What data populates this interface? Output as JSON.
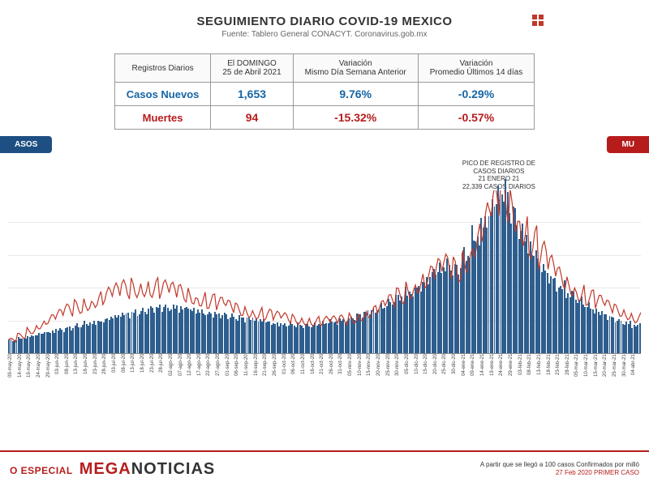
{
  "header": {
    "title": "SEGUIMIENTO DIARIO COVID-19 MEXICO",
    "subtitle": "Fuente: Tablero General CONACYT. Coronavirus.gob.mx"
  },
  "table": {
    "col_headers": [
      "Registros Diarios",
      "El DOMINGO\n25 de Abril 2021",
      "Variación\nMismo Día Semana Anterior",
      "Variación\nPromedio Últimos 14 días"
    ],
    "rows": [
      {
        "label": "Casos Nuevos",
        "values": [
          "1,653",
          "9.76%",
          "-0.29%"
        ],
        "class": "casos"
      },
      {
        "label": "Muertes",
        "values": [
          "94",
          "-15.32%",
          "-0.57%"
        ],
        "class": "muertes"
      }
    ]
  },
  "tabs": {
    "left": "ASOS",
    "right": "MU"
  },
  "annotation": {
    "lines": [
      "PICO DE REGISTRO DE",
      "CASOS DIARIOS",
      "21 ENERO 21",
      "22,339 CASOS DIARIOS"
    ]
  },
  "chart": {
    "type": "bar+line",
    "background_color": "#ffffff",
    "grid_color": "#e8e8e8",
    "bar_color": "#2e5e8e",
    "line_color": "#c0392b",
    "line_width": 1.2,
    "ymax_bars": 22500,
    "ymax_line": 1800,
    "grid_steps": 5,
    "xlabels": [
      "09-may-20",
      "14-may-20",
      "19-may-20",
      "24-may-20",
      "29-may-20",
      "03-jun-20",
      "08-jun-20",
      "13-jun-20",
      "18-jun-20",
      "23-jun-20",
      "28-jun-20",
      "03-jul-20",
      "08-jul-20",
      "13-jul-20",
      "18-jul-20",
      "23-jul-20",
      "28-jul-20",
      "02-ago-20",
      "07-ago-20",
      "12-ago-20",
      "17-ago-20",
      "22-ago-20",
      "27-ago-20",
      "01-sep-20",
      "06-sep-20",
      "11-sep-20",
      "16-sep-20",
      "21-sep-20",
      "26-sep-20",
      "01-oct-20",
      "06-oct-20",
      "11-oct-20",
      "16-oct-20",
      "21-oct-20",
      "26-oct-20",
      "31-oct-20",
      "05-nov-20",
      "10-nov-20",
      "15-nov-20",
      "20-nov-20",
      "25-nov-20",
      "30-nov-20",
      "05-dic-20",
      "10-dic-20",
      "15-dic-20",
      "20-dic-20",
      "25-dic-20",
      "30-dic-20",
      "04-ene-21",
      "09-ene-21",
      "14-ene-21",
      "19-ene-21",
      "24-ene-21",
      "29-ene-21",
      "03-feb-21",
      "08-feb-21",
      "13-feb-21",
      "18-feb-21",
      "23-feb-21",
      "28-feb-21",
      "05-mar-21",
      "10-mar-21",
      "15-mar-21",
      "20-mar-21",
      "25-mar-21",
      "30-mar-21",
      "04-abr-21"
    ],
    "bars": [
      1800,
      2100,
      2400,
      2700,
      2900,
      3200,
      3500,
      3800,
      4100,
      4400,
      4700,
      5000,
      5300,
      5600,
      5900,
      6200,
      6400,
      6300,
      6100,
      5900,
      5700,
      5500,
      5300,
      5100,
      4900,
      4700,
      4500,
      4300,
      4100,
      4000,
      3900,
      3800,
      3900,
      4100,
      4300,
      4600,
      5000,
      5400,
      5800,
      6300,
      6900,
      7600,
      8400,
      9300,
      10300,
      11400,
      12000,
      11500,
      13500,
      16000,
      18500,
      21000,
      22000,
      19000,
      16500,
      14000,
      12000,
      10500,
      9200,
      8100,
      7200,
      6400,
      5700,
      5100,
      4600,
      4200,
      3800
    ],
    "line": [
      150,
      200,
      260,
      320,
      380,
      430,
      480,
      520,
      560,
      600,
      640,
      680,
      710,
      730,
      740,
      730,
      710,
      690,
      670,
      640,
      610,
      580,
      550,
      520,
      490,
      470,
      450,
      430,
      410,
      395,
      380,
      370,
      360,
      360,
      365,
      375,
      395,
      425,
      465,
      515,
      575,
      640,
      710,
      780,
      850,
      920,
      960,
      930,
      1050,
      1250,
      1450,
      1620,
      1700,
      1580,
      1400,
      1230,
      1080,
      950,
      840,
      750,
      680,
      620,
      570,
      520,
      480,
      440,
      400
    ]
  },
  "footer": {
    "especial": "O ESPECIAL",
    "brand1": "MEGA",
    "brand2": "NOTICIAS",
    "note1": "A partir que se llegó a 100 casos Confirmados por milló",
    "note2": "27 Feb 2020 PRIMER CASO"
  },
  "colors": {
    "casos": "#1565a5",
    "muertes": "#b71c1c",
    "accent_red": "#c0392b",
    "bar": "#2e5e8e"
  }
}
